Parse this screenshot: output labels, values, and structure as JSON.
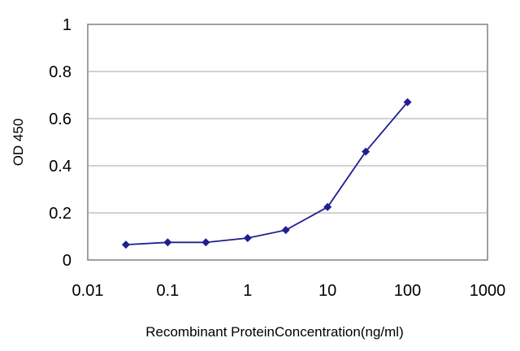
{
  "chart_data": {
    "type": "line",
    "title": "",
    "xlabel": "Recombinant ProteinConcentration(ng/ml)",
    "ylabel": "OD 450",
    "x_scale": "log",
    "xlim": [
      0.01,
      1000
    ],
    "ylim": [
      0,
      1
    ],
    "x_ticks": [
      "0.01",
      "0.1",
      "1",
      "10",
      "100",
      "1000"
    ],
    "y_ticks": [
      "0",
      "0.2",
      "0.4",
      "0.6",
      "0.8",
      "1"
    ],
    "grid": "horizontal",
    "legend": "none",
    "series": [
      {
        "color": "#1f1f8f",
        "marker": "diamond",
        "x": [
          0.03,
          0.1,
          0.3,
          1,
          3,
          10,
          30,
          100
        ],
        "y": [
          0.065,
          0.075,
          0.075,
          0.093,
          0.127,
          0.225,
          0.46,
          0.67
        ]
      }
    ]
  }
}
